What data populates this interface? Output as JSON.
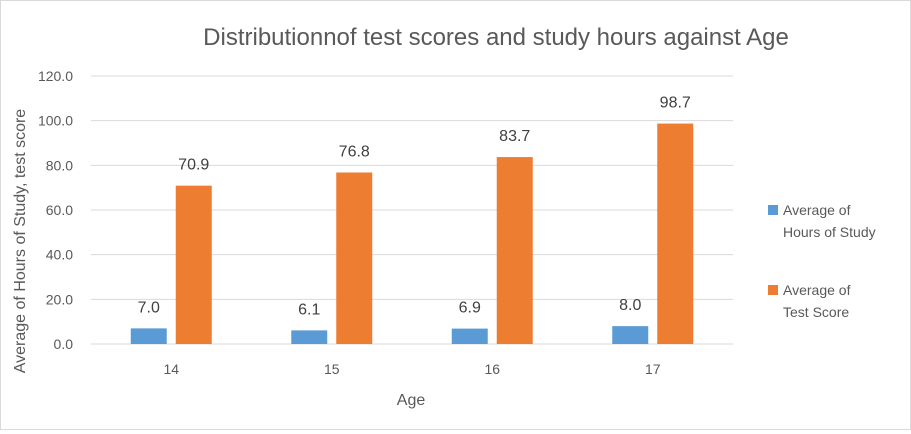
{
  "chart_data": {
    "type": "bar",
    "title": "Distributionnof test scores and study hours against Age",
    "xlabel": "Age",
    "ylabel": "Average of  Hours of Study, test score",
    "categories": [
      "14",
      "15",
      "16",
      "17"
    ],
    "ylim": [
      0,
      120
    ],
    "yticks": [
      "0.0",
      "20.0",
      "40.0",
      "60.0",
      "80.0",
      "100.0",
      "120.0"
    ],
    "grid": true,
    "legend_position": "right",
    "series": [
      {
        "name": "Average of Hours of Study",
        "legend_lines": [
          "Average of",
          "Hours of Study"
        ],
        "color": "#5b9bd5",
        "values": [
          7.0,
          6.1,
          6.9,
          8.0
        ],
        "labels": [
          "7.0",
          "6.1",
          "6.9",
          "8.0"
        ]
      },
      {
        "name": "Average of Test Score",
        "legend_lines": [
          "Average of",
          "Test Score"
        ],
        "color": "#ed7d31",
        "values": [
          70.9,
          76.8,
          83.7,
          98.7
        ],
        "labels": [
          "70.9",
          "76.8",
          "83.7",
          "98.7"
        ]
      }
    ]
  }
}
